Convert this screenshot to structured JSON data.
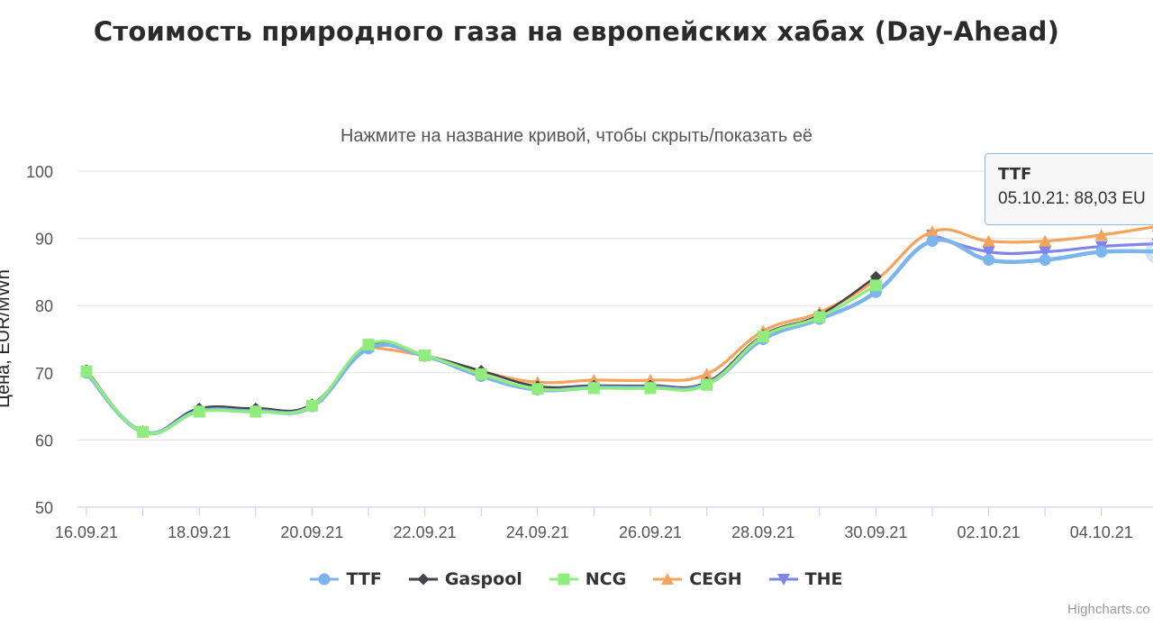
{
  "title": "Стоимость природного газа на европейских хабах (Day-Ahead)",
  "subtitle": "Нажмите на название кривой, чтобы скрыть/показать её",
  "credits": "Highcharts.co",
  "tooltip": {
    "series": "TTF",
    "text": "05.10.21: 88,03 EU"
  },
  "chart_data": {
    "type": "line",
    "title": "Стоимость природного газа на европейских хабах (Day-Ahead)",
    "subtitle": "Нажмите на название кривой, чтобы скрыть/показать её",
    "ylabel": "Цена, EUR/MWh",
    "xlabel": "",
    "ylim": [
      50,
      100
    ],
    "yticks": [
      50,
      60,
      70,
      80,
      90,
      100
    ],
    "grid": true,
    "legend_position": "bottom",
    "x": [
      "16.09.21",
      "17.09.21",
      "18.09.21",
      "19.09.21",
      "20.09.21",
      "21.09.21",
      "22.09.21",
      "23.09.21",
      "24.09.21",
      "25.09.21",
      "26.09.21",
      "27.09.21",
      "28.09.21",
      "29.09.21",
      "30.09.21",
      "01.10.21",
      "02.10.21",
      "03.10.21",
      "04.10.21",
      "05.10.21"
    ],
    "xtick_labels": [
      "16.09.21",
      "18.09.21",
      "20.09.21",
      "22.09.21",
      "24.09.21",
      "26.09.21",
      "28.09.21",
      "30.09.21",
      "02.10.21",
      "04.10.21"
    ],
    "series": [
      {
        "name": "TTF",
        "color": "#7cb5ec",
        "marker": "circle",
        "values": [
          70.0,
          61.2,
          64.3,
          64.3,
          65.0,
          73.6,
          72.5,
          69.5,
          67.5,
          67.8,
          67.8,
          68.3,
          75.0,
          78.0,
          82.0,
          89.6,
          86.8,
          86.8,
          88.0,
          88.03
        ]
      },
      {
        "name": "Gaspool",
        "color": "#434348",
        "marker": "diamond",
        "values": [
          70.4,
          61.3,
          64.7,
          64.7,
          65.3,
          74.0,
          72.6,
          70.3,
          68.0,
          68.1,
          68.1,
          68.6,
          75.6,
          78.6,
          84.3,
          null,
          null,
          null,
          null,
          null
        ]
      },
      {
        "name": "NCG",
        "color": "#90ed7d",
        "marker": "square",
        "values": [
          70.2,
          61.2,
          64.2,
          64.2,
          65.1,
          74.2,
          72.6,
          69.8,
          67.6,
          67.7,
          67.7,
          68.2,
          75.4,
          78.3,
          83.0,
          null,
          null,
          null,
          null,
          null
        ]
      },
      {
        "name": "CEGH",
        "color": "#f7a35c",
        "marker": "triangle",
        "values": [
          null,
          null,
          null,
          null,
          null,
          73.9,
          72.5,
          70.2,
          68.6,
          68.9,
          68.9,
          69.8,
          76.2,
          79.0,
          83.8,
          91.0,
          89.6,
          89.6,
          90.5,
          91.8
        ]
      },
      {
        "name": "THE",
        "color": "#8085e9",
        "marker": "triangle-down",
        "values": [
          null,
          null,
          null,
          null,
          null,
          null,
          null,
          null,
          null,
          null,
          null,
          null,
          null,
          null,
          null,
          90.5,
          88.0,
          88.0,
          88.8,
          89.2
        ]
      }
    ]
  }
}
